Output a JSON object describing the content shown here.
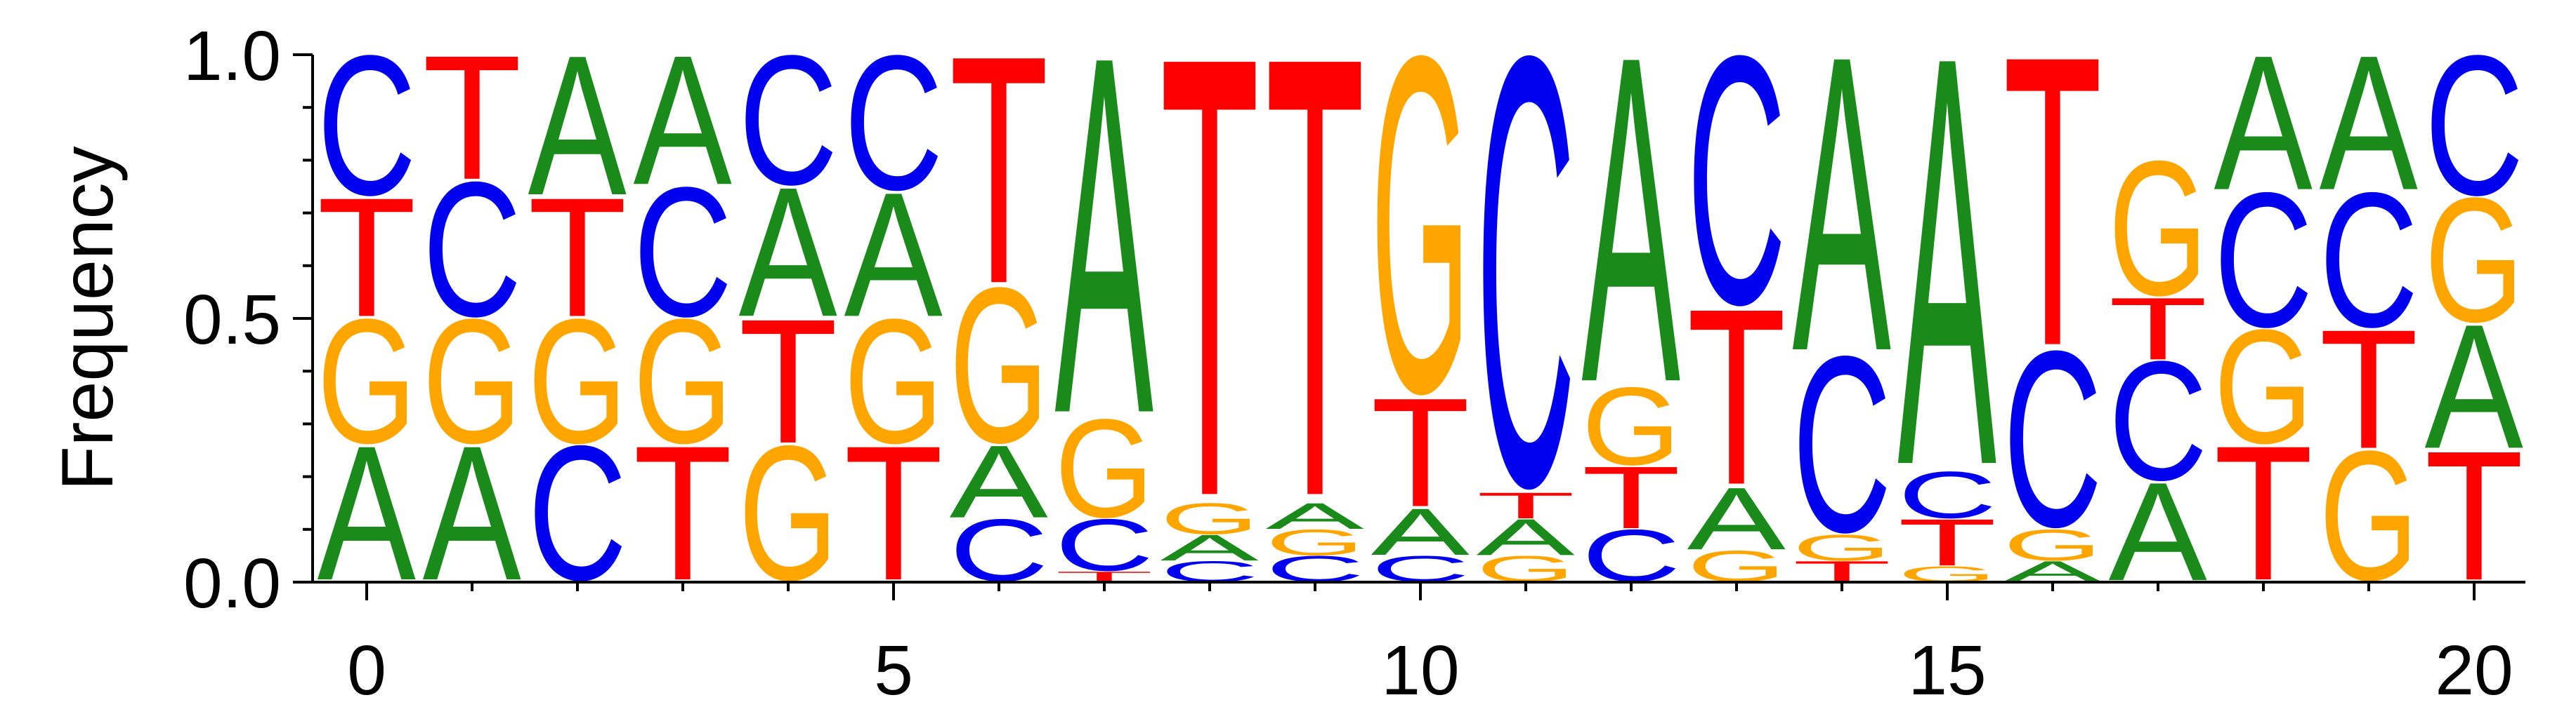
{
  "chart_data": {
    "type": "sequence-logo",
    "ylabel": "Frequency",
    "xlabel": "",
    "xlim": [
      -0.5,
      20.5
    ],
    "ylim": [
      0,
      1.0
    ],
    "x_ticks": [
      0,
      5,
      10,
      15,
      20
    ],
    "x_tick_labels": [
      "0",
      "5",
      "10",
      "15",
      "20"
    ],
    "x_minor_ticks": [
      0,
      1,
      2,
      3,
      4,
      5,
      6,
      7,
      8,
      9,
      10,
      11,
      12,
      13,
      14,
      15,
      16,
      17,
      18,
      19,
      20
    ],
    "y_ticks": [
      0.0,
      0.5,
      1.0
    ],
    "y_tick_labels": [
      "0.0",
      "0.5",
      "1.0"
    ],
    "y_minor_ticks": [
      0.1,
      0.2,
      0.3,
      0.4,
      0.6,
      0.7,
      0.8,
      0.9
    ],
    "colors": {
      "A": "#1a8a1a",
      "C": "#0000ee",
      "G": "#ffa500",
      "T": "#ff0000"
    },
    "positions": [
      {
        "x": 0,
        "stack": [
          [
            "A",
            0.26
          ],
          [
            "G",
            0.24
          ],
          [
            "T",
            0.23
          ],
          [
            "C",
            0.27
          ]
        ]
      },
      {
        "x": 1,
        "stack": [
          [
            "A",
            0.26
          ],
          [
            "G",
            0.24
          ],
          [
            "C",
            0.26
          ],
          [
            "T",
            0.24
          ]
        ]
      },
      {
        "x": 2,
        "stack": [
          [
            "C",
            0.26
          ],
          [
            "G",
            0.24
          ],
          [
            "T",
            0.23
          ],
          [
            "A",
            0.27
          ]
        ]
      },
      {
        "x": 3,
        "stack": [
          [
            "T",
            0.26
          ],
          [
            "G",
            0.24
          ],
          [
            "C",
            0.25
          ],
          [
            "A",
            0.25
          ]
        ]
      },
      {
        "x": 4,
        "stack": [
          [
            "G",
            0.26
          ],
          [
            "T",
            0.24
          ],
          [
            "A",
            0.25
          ],
          [
            "C",
            0.25
          ]
        ]
      },
      {
        "x": 5,
        "stack": [
          [
            "T",
            0.26
          ],
          [
            "G",
            0.24
          ],
          [
            "A",
            0.24
          ],
          [
            "C",
            0.26
          ]
        ]
      },
      {
        "x": 6,
        "stack": [
          [
            "C",
            0.12
          ],
          [
            "A",
            0.14
          ],
          [
            "G",
            0.3
          ],
          [
            "T",
            0.44
          ]
        ]
      },
      {
        "x": 7,
        "stack": [
          [
            "T",
            0.02
          ],
          [
            "C",
            0.1
          ],
          [
            "G",
            0.19
          ],
          [
            "A",
            0.69
          ]
        ]
      },
      {
        "x": 8,
        "stack": [
          [
            "C",
            0.04
          ],
          [
            "A",
            0.05
          ],
          [
            "G",
            0.06
          ],
          [
            "T",
            0.85
          ]
        ]
      },
      {
        "x": 9,
        "stack": [
          [
            "C",
            0.05
          ],
          [
            "G",
            0.05
          ],
          [
            "A",
            0.05
          ],
          [
            "T",
            0.85
          ]
        ]
      },
      {
        "x": 10,
        "stack": [
          [
            "C",
            0.05
          ],
          [
            "A",
            0.09
          ],
          [
            "T",
            0.21
          ],
          [
            "G",
            0.65
          ]
        ]
      },
      {
        "x": 11,
        "stack": [
          [
            "G",
            0.05
          ],
          [
            "A",
            0.07
          ],
          [
            "T",
            0.05
          ],
          [
            "C",
            0.83
          ]
        ]
      },
      {
        "x": 12,
        "stack": [
          [
            "C",
            0.1
          ],
          [
            "T",
            0.12
          ],
          [
            "G",
            0.15
          ],
          [
            "A",
            0.63
          ]
        ]
      },
      {
        "x": 13,
        "stack": [
          [
            "G",
            0.06
          ],
          [
            "A",
            0.12
          ],
          [
            "T",
            0.34
          ],
          [
            "C",
            0.48
          ]
        ]
      },
      {
        "x": 14,
        "stack": [
          [
            "T",
            0.04
          ],
          [
            "G",
            0.05
          ],
          [
            "C",
            0.34
          ],
          [
            "A",
            0.57
          ]
        ]
      },
      {
        "x": 15,
        "stack": [
          [
            "G",
            0.03
          ],
          [
            "T",
            0.09
          ],
          [
            "C",
            0.09
          ],
          [
            "A",
            0.79
          ]
        ]
      },
      {
        "x": 16,
        "stack": [
          [
            "A",
            0.04
          ],
          [
            "G",
            0.06
          ],
          [
            "C",
            0.34
          ],
          [
            "T",
            0.56
          ]
        ]
      },
      {
        "x": 17,
        "stack": [
          [
            "A",
            0.19
          ],
          [
            "C",
            0.23
          ],
          [
            "T",
            0.12
          ],
          [
            "G",
            0.26
          ]
        ]
      },
      {
        "x": 18,
        "stack": [
          [
            "T",
            0.26
          ],
          [
            "G",
            0.22
          ],
          [
            "C",
            0.26
          ],
          [
            "A",
            0.26
          ]
        ]
      },
      {
        "x": 19,
        "stack": [
          [
            "G",
            0.25
          ],
          [
            "T",
            0.23
          ],
          [
            "C",
            0.26
          ],
          [
            "A",
            0.26
          ]
        ]
      },
      {
        "x": 20,
        "stack": [
          [
            "T",
            0.25
          ],
          [
            "A",
            0.24
          ],
          [
            "G",
            0.24
          ],
          [
            "C",
            0.27
          ]
        ]
      }
    ]
  }
}
